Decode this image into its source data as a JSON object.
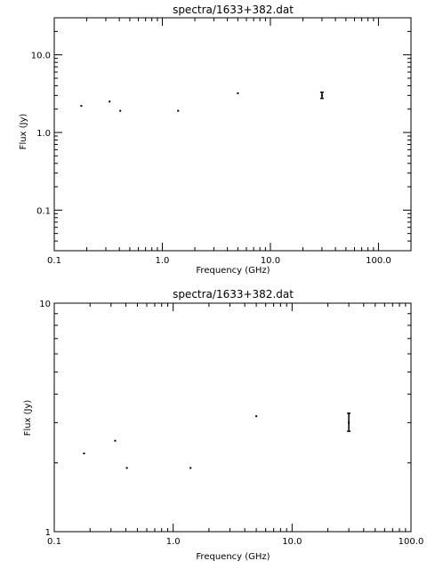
{
  "chart_data": [
    {
      "type": "scatter",
      "title": "spectra/1633+382.dat",
      "xlabel": "Frequency (GHz)",
      "ylabel": "Flux (Jy)",
      "xscale": "log",
      "yscale": "log",
      "xlim": [
        0.1,
        200
      ],
      "ylim": [
        0.03,
        30
      ],
      "xticks": [
        {
          "value": 0.1,
          "label": "0.1"
        },
        {
          "value": 1,
          "label": "1.0"
        },
        {
          "value": 10,
          "label": "10.0"
        },
        {
          "value": 100,
          "label": "100.0"
        }
      ],
      "yticks": [
        {
          "value": 0.1,
          "label": "0.1"
        },
        {
          "value": 1,
          "label": "1.0"
        },
        {
          "value": 10,
          "label": "10.0"
        }
      ],
      "points": [
        {
          "x": 0.178,
          "y": 2.2
        },
        {
          "x": 0.325,
          "y": 2.5
        },
        {
          "x": 0.408,
          "y": 1.9
        },
        {
          "x": 1.4,
          "y": 1.9
        },
        {
          "x": 5.0,
          "y": 3.2
        }
      ],
      "error_points": [
        {
          "x": 30.0,
          "y": 3.0,
          "ylow": 2.75,
          "yhigh": 3.3
        }
      ]
    },
    {
      "type": "scatter",
      "title": "spectra/1633+382.dat",
      "xlabel": "Frequency (GHz)",
      "ylabel": "Flux (Jy)",
      "xscale": "log",
      "yscale": "log",
      "xlim": [
        0.1,
        100
      ],
      "ylim": [
        1,
        10
      ],
      "xticks": [
        {
          "value": 0.1,
          "label": "0.1"
        },
        {
          "value": 1,
          "label": "1.0"
        },
        {
          "value": 10,
          "label": "10.0"
        },
        {
          "value": 100,
          "label": "100.0"
        }
      ],
      "yticks": [
        {
          "value": 1,
          "label": "1"
        },
        {
          "value": 10,
          "label": "10"
        }
      ],
      "points": [
        {
          "x": 0.178,
          "y": 2.2
        },
        {
          "x": 0.325,
          "y": 2.5
        },
        {
          "x": 0.408,
          "y": 1.9
        },
        {
          "x": 1.4,
          "y": 1.9
        },
        {
          "x": 5.0,
          "y": 3.2
        }
      ],
      "error_points": [
        {
          "x": 30.0,
          "y": 3.0,
          "ylow": 2.75,
          "yhigh": 3.3
        }
      ]
    }
  ]
}
